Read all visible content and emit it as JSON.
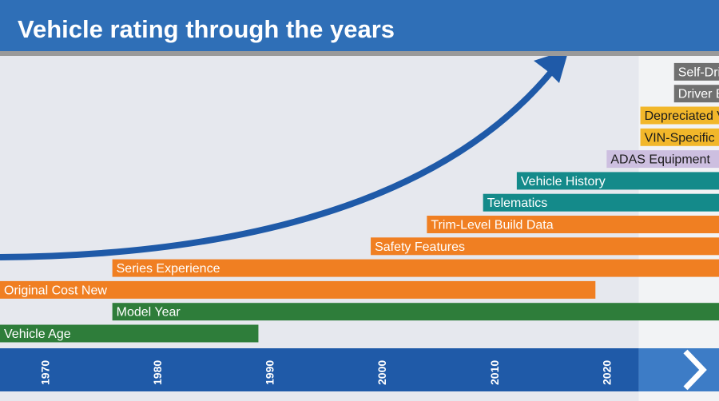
{
  "chart_data": {
    "type": "bar",
    "orientation": "horizontal-timeline",
    "title": "Vehicle rating through the years",
    "x_ticks": [
      "1970",
      "1980",
      "1990",
      "2000",
      "2010",
      "2020"
    ],
    "xlim": [
      1966,
      2030
    ],
    "future_start": 2023,
    "series": [
      {
        "name": "Vehicle Age",
        "start": 1966,
        "end": 1989,
        "color": "#2e7d3a"
      },
      {
        "name": "Model Year",
        "start": 1976,
        "end": 2030,
        "color": "#2e7d3a"
      },
      {
        "name": "Original Cost New",
        "start": 1966,
        "end": 2019,
        "color": "#f07f22"
      },
      {
        "name": "Series Experience",
        "start": 1976,
        "end": 2030,
        "color": "#f07f22"
      },
      {
        "name": "Safety Features",
        "start": 1999,
        "end": 2030,
        "color": "#f07f22"
      },
      {
        "name": "Trim-Level Build Data",
        "start": 2004,
        "end": 2030,
        "color": "#f07f22"
      },
      {
        "name": "Telematics",
        "start": 2009,
        "end": 2030,
        "color": "#148a8a"
      },
      {
        "name": "Vehicle History",
        "start": 2012,
        "end": 2030,
        "color": "#148a8a"
      },
      {
        "name": "ADAS Equipment",
        "start": 2020,
        "end": 2030,
        "color": "#cdbfe0",
        "label_dark": true
      },
      {
        "name": "VIN-Specific Build Data",
        "start": 2023,
        "end": 2030,
        "color": "#f2b72a",
        "label_dark": true
      },
      {
        "name": "Depreciated Value",
        "start": 2023,
        "end": 2030,
        "color": "#f2b72a",
        "label_dark": true
      },
      {
        "name": "Driver Behavior",
        "start": 2026,
        "end": 2030,
        "color": "#707070"
      },
      {
        "name": "Self-Driving",
        "start": 2026,
        "end": 2030,
        "color": "#707070"
      }
    ],
    "colors": {
      "header": "#2f6fb7",
      "header_rule": "#9a9a9a",
      "axis_band": "#1f5aa8",
      "axis_band_future": "#3d7cc6",
      "background": "#e6e8ee",
      "future_background": "#f2f3f5",
      "trend_arrow": "#1f5aa8"
    }
  }
}
